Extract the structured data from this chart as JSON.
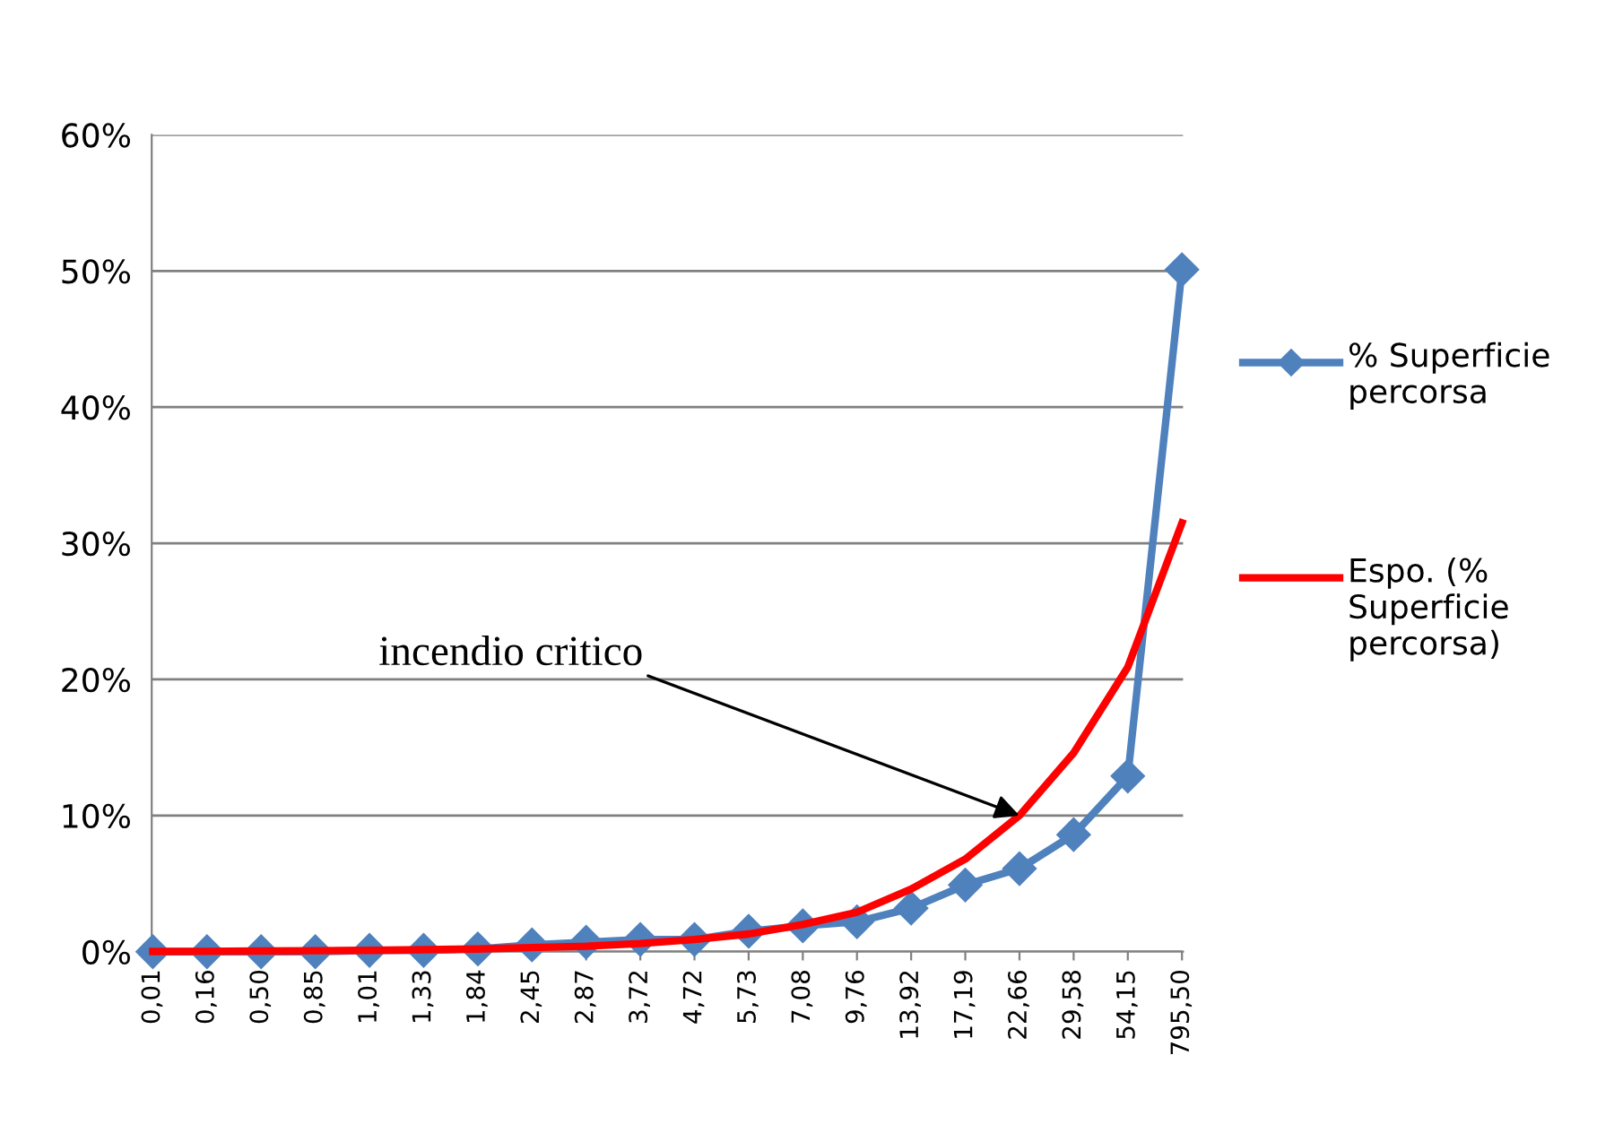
{
  "chart_data": {
    "type": "line",
    "categories": [
      "0,01",
      "0,16",
      "0,50",
      "0,85",
      "1,01",
      "1,33",
      "1,84",
      "2,45",
      "2,87",
      "3,72",
      "4,72",
      "5,73",
      "7,08",
      "9,76",
      "13,92",
      "17,19",
      "22,66",
      "29,58",
      "54,15",
      "795,50"
    ],
    "series": [
      {
        "name": "% Superficie percorsa",
        "color": "#4f81bd",
        "marker": "diamond",
        "values": [
          0,
          0,
          0,
          0,
          0.1,
          0.1,
          0.2,
          0.5,
          0.7,
          0.9,
          0.9,
          1.5,
          1.9,
          2.2,
          3.2,
          4.9,
          6.1,
          8.6,
          12.9,
          50.1
        ]
      },
      {
        "name": "Espo. (% Superficie percorsa)",
        "color": "#ff0000",
        "marker": "none",
        "values": [
          0.02,
          0.03,
          0.05,
          0.07,
          0.1,
          0.15,
          0.2,
          0.3,
          0.4,
          0.6,
          0.9,
          1.3,
          2.0,
          2.9,
          4.6,
          6.8,
          10.0,
          14.6,
          20.9,
          31.5
        ]
      }
    ],
    "ylim": [
      0,
      60
    ],
    "yticks": [
      {
        "value": 0,
        "label": "0%"
      },
      {
        "value": 10,
        "label": "10%"
      },
      {
        "value": 20,
        "label": "20%"
      },
      {
        "value": 30,
        "label": "30%"
      },
      {
        "value": 40,
        "label": "40%"
      },
      {
        "value": 50,
        "label": "50%"
      },
      {
        "value": 60,
        "label": "60%"
      }
    ],
    "grid": "y",
    "legend": "right",
    "annotations": [
      {
        "text": "incendio critico",
        "x": "22,66",
        "y": 10.0
      }
    ]
  }
}
